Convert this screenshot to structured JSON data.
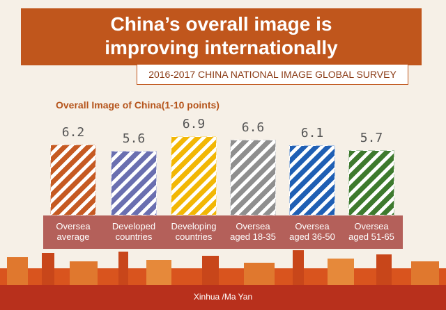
{
  "chart_data": {
    "type": "bar",
    "title": "China’s overall image is\nimproving internationally",
    "subtitle": "2016-2017 CHINA NATIONAL IMAGE GLOBAL SURVEY",
    "chart_label": "Overall Image of China(1-10 points)",
    "categories": [
      "Oversea\naverage",
      "Developed\ncountries",
      "Developing\ncountries",
      "Oversea\naged 18-35",
      "Oversea\naged 36-50",
      "Oversea\naged 51-65"
    ],
    "values": [
      6.2,
      5.6,
      6.9,
      6.6,
      6.1,
      5.7
    ],
    "colors": [
      "#c65a22",
      "#6a6fb0",
      "#f2b705",
      "#8f8f8f",
      "#1f5fb4",
      "#3e7a2e"
    ],
    "credit": "Xinhua /Ma Yan"
  }
}
